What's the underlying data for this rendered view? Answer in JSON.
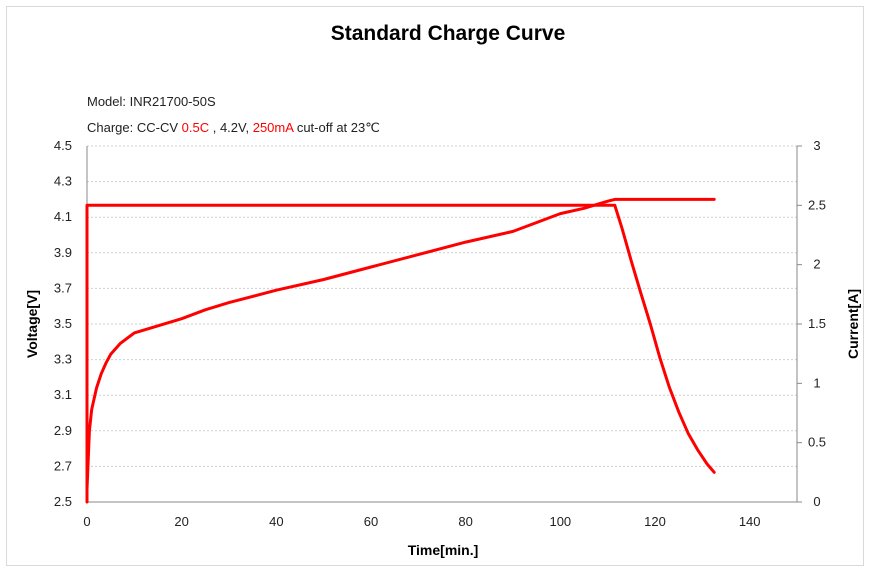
{
  "chart_data": {
    "type": "line",
    "title": "Standard Charge Curve",
    "annotations": {
      "model": "Model: INR21700-50S",
      "charge_parts": [
        {
          "text": "Charge: CC-CV ",
          "highlight": false
        },
        {
          "text": "0.5C",
          "highlight": true
        },
        {
          "text": " , 4.2V, ",
          "highlight": false
        },
        {
          "text": "250mA",
          "highlight": true
        },
        {
          "text": " cut-off at 23℃",
          "highlight": false
        }
      ]
    },
    "xlabel": "Time[min.]",
    "ylabel_left": "Voltage[V]",
    "ylabel_right": "Current[A]",
    "xlim": [
      0,
      150
    ],
    "ylim_left": [
      2.5,
      4.5
    ],
    "ylim_right": [
      0,
      3
    ],
    "x_ticks": [
      "0",
      "20",
      "40",
      "60",
      "80",
      "100",
      "120",
      "140"
    ],
    "y_left_ticks": [
      "2.5",
      "2.7",
      "2.9",
      "3.1",
      "3.3",
      "3.5",
      "3.7",
      "3.9",
      "4.1",
      "4.3",
      "4.5"
    ],
    "y_right_ticks": [
      "0",
      "0.5",
      "1",
      "1.5",
      "2",
      "2.5",
      "3"
    ],
    "grid": true,
    "line_color": "#ff0000",
    "series": [
      {
        "axis": "left",
        "x": [
          0,
          0.5,
          1,
          2,
          3,
          4,
          5,
          7,
          10,
          15,
          20,
          25,
          30,
          40,
          50,
          60,
          70,
          80,
          90,
          95,
          100,
          105,
          110,
          111.5,
          115,
          120,
          125,
          130,
          132.5
        ],
        "y": [
          2.57,
          2.9,
          3.02,
          3.14,
          3.22,
          3.28,
          3.33,
          3.39,
          3.45,
          3.49,
          3.53,
          3.58,
          3.62,
          3.69,
          3.75,
          3.82,
          3.89,
          3.96,
          4.02,
          4.07,
          4.12,
          4.15,
          4.19,
          4.2,
          4.2,
          4.2,
          4.2,
          4.2,
          4.2
        ]
      },
      {
        "axis": "right",
        "x": [
          0,
          0,
          10,
          50,
          100,
          110,
          111.5,
          113,
          115,
          117,
          119,
          121,
          123,
          125,
          127,
          129,
          131,
          132.5
        ],
        "y": [
          0,
          2.5,
          2.5,
          2.5,
          2.5,
          2.5,
          2.5,
          2.31,
          2.03,
          1.76,
          1.5,
          1.22,
          0.97,
          0.76,
          0.58,
          0.44,
          0.32,
          0.25
        ]
      }
    ]
  }
}
